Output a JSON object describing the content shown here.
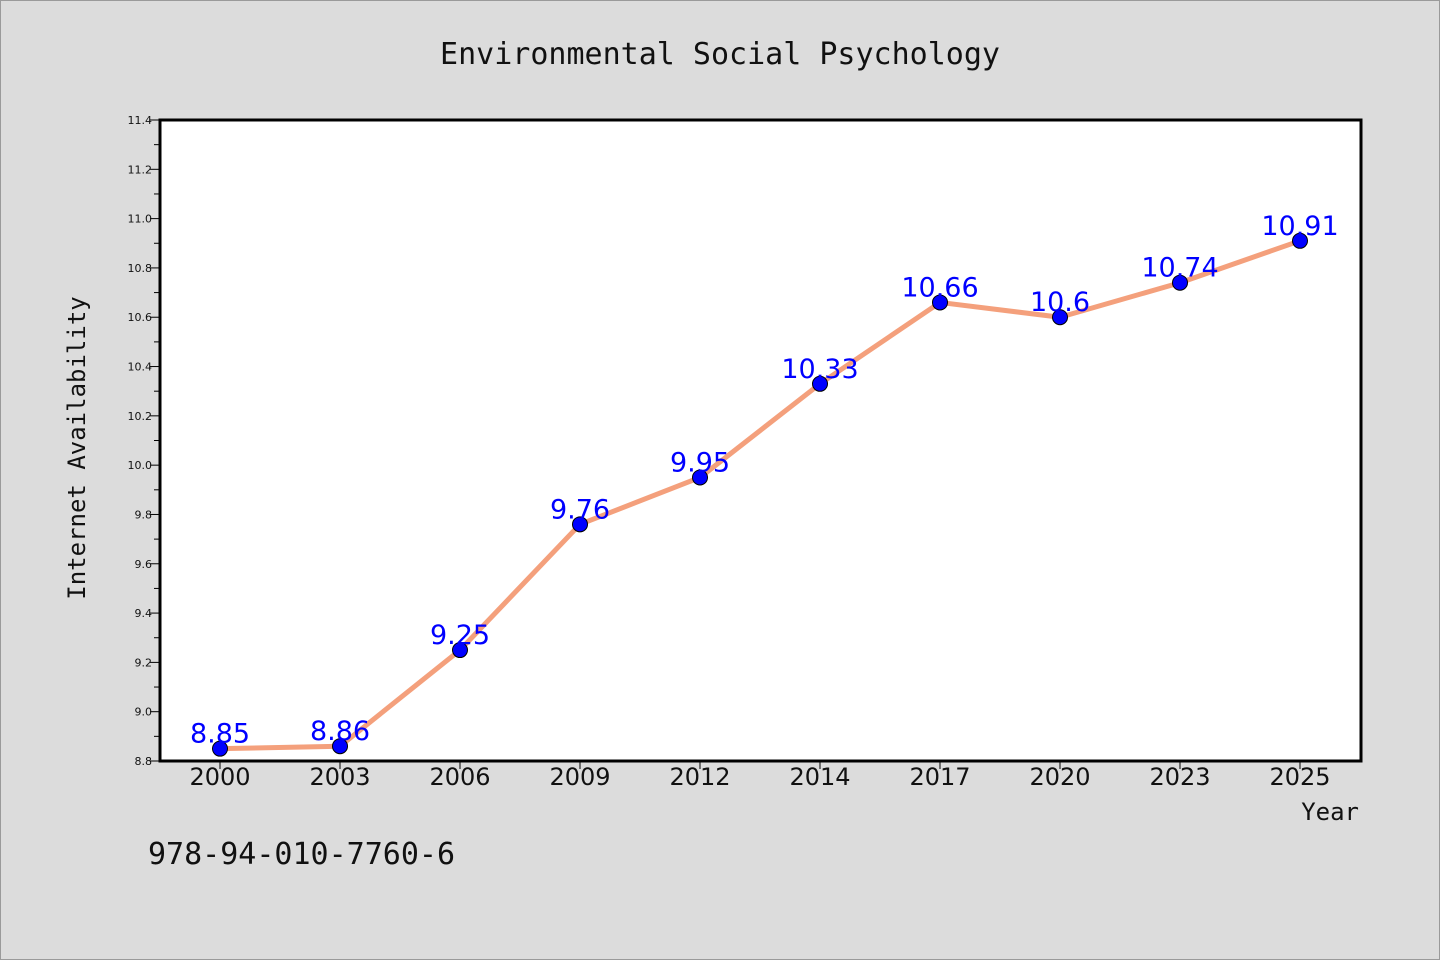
{
  "chart_data": {
    "type": "line",
    "title": "Environmental Social Psychology",
    "xlabel": "Year",
    "ylabel": "Internet Availability",
    "categories": [
      "2000",
      "2003",
      "2006",
      "2009",
      "2012",
      "2014",
      "2017",
      "2020",
      "2023",
      "2025"
    ],
    "series": [
      {
        "values": [
          8.85,
          8.86,
          9.25,
          9.76,
          9.95,
          10.33,
          10.66,
          10.6,
          10.74,
          10.91
        ],
        "data_labels": [
          "8.85",
          "8.86",
          "9.25",
          "9.76",
          "9.95",
          "10.33",
          "10.66",
          "10.6",
          "10.74",
          "10.91"
        ],
        "line_color": "#f4a07c",
        "marker_color": "#0000ff"
      }
    ],
    "ylim": [
      8.8,
      11.4
    ],
    "yticks": [
      "8.8",
      "9.0",
      "9.2",
      "9.4",
      "9.6",
      "9.8",
      "10.0",
      "10.2",
      "10.4",
      "10.6",
      "10.8",
      "11.0",
      "11.2",
      "11.4"
    ],
    "grid": false,
    "legend": "none",
    "colors": {
      "background": "#dcdcdc",
      "plot_background": "#ffffff",
      "label_color": "#0000ff"
    }
  },
  "footnote": "978-94-010-7760-6"
}
